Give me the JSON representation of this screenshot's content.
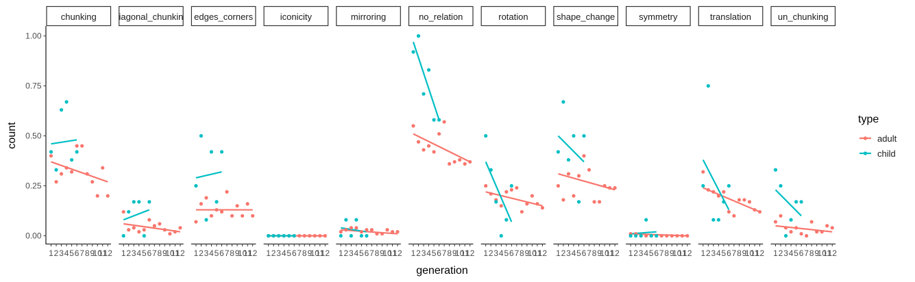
{
  "chart_data": {
    "type": "scatter",
    "xlabel": "generation",
    "ylabel": "count",
    "x_ticks": [
      "1",
      "2",
      "3",
      "4",
      "5",
      "6",
      "7",
      "8",
      "9",
      "10",
      "11",
      "12"
    ],
    "ylim": [
      0,
      1
    ],
    "y_ticks": [
      "0.00",
      "0.25",
      "0.50",
      "0.75",
      "1.00"
    ],
    "y_tick_values": [
      0,
      0.25,
      0.5,
      0.75,
      1.0
    ],
    "grid": false,
    "legend": {
      "title": "type",
      "placement": "right",
      "entries": [
        {
          "name": "adult",
          "color": "#F8766D"
        },
        {
          "name": "child",
          "color": "#00BFC4"
        }
      ]
    },
    "facets": [
      {
        "label": "chunking",
        "adult": {
          "x": [
            1,
            2,
            3,
            4,
            5,
            6,
            7,
            8,
            9,
            10,
            11,
            12
          ],
          "y": [
            0.4,
            0.27,
            0.31,
            0.34,
            0.32,
            0.45,
            0.45,
            0.31,
            0.27,
            0.2,
            0.34,
            0.2
          ],
          "fit": [
            [
              1,
              0.37
            ],
            [
              12,
              0.27
            ]
          ]
        },
        "child": {
          "x": [
            1,
            2,
            3,
            4,
            5,
            6
          ],
          "y": [
            0.42,
            0.33,
            0.63,
            0.67,
            0.38,
            0.42
          ],
          "fit": [
            [
              1,
              0.46
            ],
            [
              6,
              0.48
            ]
          ]
        }
      },
      {
        "label": "diagonal_chunking",
        "adult": {
          "x": [
            1,
            2,
            3,
            4,
            5,
            6,
            7,
            8,
            9,
            10,
            11,
            12
          ],
          "y": [
            0.12,
            0.03,
            0.04,
            0.02,
            0.03,
            0.08,
            0.05,
            0.06,
            0.03,
            0.01,
            0.02,
            0.04
          ],
          "fit": [
            [
              1,
              0.06
            ],
            [
              12,
              0.02
            ]
          ]
        },
        "child": {
          "x": [
            1,
            2,
            3,
            4,
            5,
            6
          ],
          "y": [
            0.0,
            0.12,
            0.17,
            0.17,
            0.0,
            0.17
          ],
          "fit": [
            [
              1,
              0.08
            ],
            [
              6,
              0.13
            ]
          ]
        }
      },
      {
        "label": "edges_corners",
        "adult": {
          "x": [
            1,
            2,
            3,
            4,
            5,
            6,
            7,
            8,
            9,
            10,
            11,
            12
          ],
          "y": [
            0.07,
            0.16,
            0.19,
            0.1,
            0.13,
            0.12,
            0.22,
            0.1,
            0.15,
            0.1,
            0.16,
            0.1
          ],
          "fit": [
            [
              1,
              0.13
            ],
            [
              12,
              0.13
            ]
          ]
        },
        "child": {
          "x": [
            1,
            2,
            3,
            4,
            5,
            6
          ],
          "y": [
            0.25,
            0.5,
            0.08,
            0.42,
            0.17,
            0.42
          ],
          "fit": [
            [
              1,
              0.29
            ],
            [
              6,
              0.32
            ]
          ]
        }
      },
      {
        "label": "iconicity",
        "adult": {
          "x": [
            1,
            2,
            3,
            4,
            5,
            6,
            7,
            8,
            9,
            10,
            11,
            12
          ],
          "y": [
            0,
            0,
            0,
            0,
            0,
            0,
            0,
            0,
            0,
            0,
            0,
            0
          ],
          "fit": [
            [
              1,
              0.0
            ],
            [
              12,
              0.0
            ]
          ]
        },
        "child": {
          "x": [
            1,
            2,
            3,
            4,
            5,
            6
          ],
          "y": [
            0,
            0,
            0,
            0,
            0,
            0
          ],
          "fit": [
            [
              1,
              0.0
            ],
            [
              6,
              0.0
            ]
          ]
        }
      },
      {
        "label": "mirroring",
        "adult": {
          "x": [
            1,
            2,
            3,
            4,
            5,
            6,
            7,
            8,
            9,
            10,
            11,
            12
          ],
          "y": [
            0.02,
            0.03,
            0.04,
            0.04,
            0.02,
            0.03,
            0.03,
            0.01,
            0.01,
            0.03,
            0.02,
            0.02
          ],
          "fit": [
            [
              1,
              0.03
            ],
            [
              12,
              0.01
            ]
          ]
        },
        "child": {
          "x": [
            1,
            2,
            3,
            4,
            5,
            6
          ],
          "y": [
            0.0,
            0.08,
            0.0,
            0.08,
            0.0,
            0.0
          ],
          "fit": [
            [
              1,
              0.04
            ],
            [
              6,
              0.02
            ]
          ]
        }
      },
      {
        "label": "no_relation",
        "adult": {
          "x": [
            1,
            2,
            3,
            4,
            5,
            6,
            7,
            8,
            9,
            10,
            11,
            12
          ],
          "y": [
            0.55,
            0.47,
            0.43,
            0.45,
            0.42,
            0.51,
            0.57,
            0.36,
            0.37,
            0.38,
            0.36,
            0.37
          ],
          "fit": [
            [
              1,
              0.51
            ],
            [
              12,
              0.37
            ]
          ]
        },
        "child": {
          "x": [
            1,
            2,
            3,
            4,
            5,
            6
          ],
          "y": [
            0.92,
            1.0,
            0.71,
            0.83,
            0.58,
            0.58
          ],
          "fit": [
            [
              1,
              0.97
            ],
            [
              6,
              0.58
            ]
          ]
        }
      },
      {
        "label": "rotation",
        "adult": {
          "x": [
            1,
            2,
            3,
            4,
            5,
            6,
            7,
            8,
            9,
            10,
            11,
            12
          ],
          "y": [
            0.25,
            0.21,
            0.18,
            0.15,
            0.22,
            0.23,
            0.24,
            0.12,
            0.16,
            0.2,
            0.16,
            0.14
          ],
          "fit": [
            [
              1,
              0.22
            ],
            [
              12,
              0.15
            ]
          ]
        },
        "child": {
          "x": [
            1,
            2,
            3,
            4,
            5,
            6
          ],
          "y": [
            0.5,
            0.33,
            0.17,
            0.0,
            0.08,
            0.25
          ],
          "fit": [
            [
              1,
              0.37
            ],
            [
              6,
              0.07
            ]
          ]
        }
      },
      {
        "label": "shape_change",
        "adult": {
          "x": [
            1,
            2,
            3,
            4,
            5,
            6,
            7,
            8,
            9,
            10,
            11,
            12
          ],
          "y": [
            0.25,
            0.18,
            0.31,
            0.2,
            0.3,
            0.4,
            0.33,
            0.17,
            0.17,
            0.25,
            0.24,
            0.24
          ],
          "fit": [
            [
              1,
              0.31
            ],
            [
              12,
              0.23
            ]
          ]
        },
        "child": {
          "x": [
            1,
            2,
            3,
            4,
            5,
            6
          ],
          "y": [
            0.42,
            0.67,
            0.38,
            0.5,
            0.17,
            0.5
          ],
          "fit": [
            [
              1,
              0.5
            ],
            [
              6,
              0.37
            ]
          ]
        }
      },
      {
        "label": "symmetry",
        "adult": {
          "x": [
            1,
            2,
            3,
            4,
            5,
            6,
            7,
            8,
            9,
            10,
            11,
            12
          ],
          "y": [
            0.01,
            0.01,
            0.0,
            0.0,
            0.0,
            0.0,
            0.0,
            0.0,
            0.0,
            0.0,
            0.0,
            0.0
          ],
          "fit": [
            [
              1,
              0.01
            ],
            [
              12,
              0.0
            ]
          ]
        },
        "child": {
          "x": [
            1,
            2,
            3,
            4,
            5,
            6
          ],
          "y": [
            0.0,
            0.0,
            0.0,
            0.08,
            0.0,
            0.0
          ],
          "fit": [
            [
              1,
              0.01
            ],
            [
              6,
              0.02
            ]
          ]
        }
      },
      {
        "label": "translation",
        "adult": {
          "x": [
            1,
            2,
            3,
            4,
            5,
            6,
            7,
            8,
            9,
            10,
            11,
            12
          ],
          "y": [
            0.32,
            0.23,
            0.22,
            0.2,
            0.22,
            0.12,
            0.1,
            0.18,
            0.18,
            0.17,
            0.13,
            0.12
          ],
          "fit": [
            [
              1,
              0.24
            ],
            [
              12,
              0.12
            ]
          ]
        },
        "child": {
          "x": [
            1,
            2,
            3,
            4,
            5,
            6
          ],
          "y": [
            0.25,
            0.75,
            0.08,
            0.08,
            0.17,
            0.25
          ],
          "fit": [
            [
              1,
              0.38
            ],
            [
              6,
              0.13
            ]
          ]
        }
      },
      {
        "label": "un_chunking",
        "adult": {
          "x": [
            1,
            2,
            3,
            4,
            5,
            6,
            7,
            8,
            9,
            10,
            11,
            12
          ],
          "y": [
            0.07,
            0.1,
            0.04,
            0.02,
            0.04,
            0.01,
            0.0,
            0.07,
            0.02,
            0.02,
            0.05,
            0.04
          ],
          "fit": [
            [
              1,
              0.05
            ],
            [
              12,
              0.02
            ]
          ]
        },
        "child": {
          "x": [
            1,
            2,
            3,
            4,
            5,
            6
          ],
          "y": [
            0.33,
            0.25,
            0.0,
            0.08,
            0.17,
            0.17
          ],
          "fit": [
            [
              1,
              0.23
            ],
            [
              6,
              0.1
            ]
          ]
        }
      }
    ]
  }
}
